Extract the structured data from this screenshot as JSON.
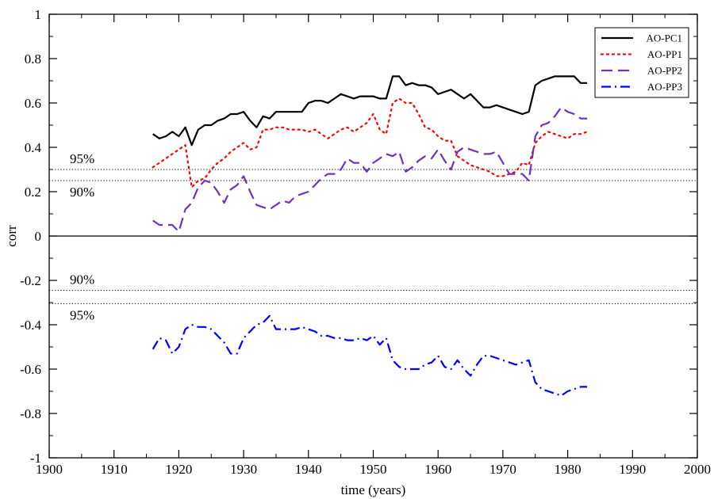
{
  "chart_data": {
    "type": "line",
    "xlabel": "time (years)",
    "ylabel": "corr",
    "xlim": [
      1900,
      2000
    ],
    "ylim": [
      -1,
      1
    ],
    "xticks": [
      1900,
      1910,
      1920,
      1930,
      1940,
      1950,
      1960,
      1970,
      1980,
      1990,
      2000
    ],
    "yticks": [
      -1,
      -0.8,
      -0.6,
      -0.4,
      -0.2,
      0,
      0.2,
      0.4,
      0.6,
      0.8,
      1
    ],
    "ytick_labels": [
      "-1",
      "-0.8",
      "-0.6",
      "-0.4",
      "-0.2",
      "0",
      "0.2",
      "0.4",
      "0.6",
      "0.8",
      "1"
    ],
    "xtick_labels": [
      "1900",
      "1910",
      "1920",
      "1930",
      "1940",
      "1950",
      "1960",
      "1970",
      "1980",
      "1990",
      "2000"
    ],
    "grid": false,
    "legend_position": "top-right",
    "reference_lines": [
      {
        "y": 0.3,
        "label": "95%",
        "style": "dotted"
      },
      {
        "y": 0.25,
        "label": "90%",
        "style": "dotted"
      },
      {
        "y": 0,
        "label": "",
        "style": "solid"
      },
      {
        "y": -0.245,
        "label": "90%",
        "style": "dotted"
      },
      {
        "y": -0.305,
        "label": "95%",
        "style": "dotted"
      }
    ],
    "series": [
      {
        "name": "AO-PC1",
        "color": "#000000",
        "dash": "solid",
        "x": [
          1916,
          1917,
          1918,
          1919,
          1920,
          1921,
          1922,
          1923,
          1924,
          1925,
          1926,
          1927,
          1928,
          1929,
          1930,
          1931,
          1932,
          1933,
          1934,
          1935,
          1936,
          1937,
          1938,
          1939,
          1940,
          1941,
          1942,
          1943,
          1944,
          1945,
          1946,
          1947,
          1948,
          1949,
          1950,
          1951,
          1952,
          1953,
          1954,
          1955,
          1956,
          1957,
          1958,
          1959,
          1960,
          1961,
          1962,
          1963,
          1964,
          1965,
          1966,
          1967,
          1968,
          1969,
          1970,
          1971,
          1972,
          1973,
          1974,
          1975,
          1976,
          1977,
          1978,
          1979,
          1980,
          1981,
          1982,
          1983
        ],
        "y": [
          0.46,
          0.44,
          0.45,
          0.47,
          0.45,
          0.49,
          0.41,
          0.48,
          0.5,
          0.5,
          0.52,
          0.53,
          0.55,
          0.55,
          0.56,
          0.52,
          0.49,
          0.54,
          0.53,
          0.56,
          0.56,
          0.56,
          0.56,
          0.56,
          0.6,
          0.61,
          0.61,
          0.6,
          0.62,
          0.64,
          0.63,
          0.62,
          0.63,
          0.63,
          0.63,
          0.62,
          0.62,
          0.72,
          0.72,
          0.68,
          0.69,
          0.68,
          0.68,
          0.67,
          0.64,
          0.65,
          0.66,
          0.64,
          0.62,
          0.64,
          0.61,
          0.58,
          0.58,
          0.59,
          0.58,
          0.57,
          0.56,
          0.55,
          0.56,
          0.68,
          0.7,
          0.71,
          0.72,
          0.72,
          0.72,
          0.72,
          0.69,
          0.69
        ]
      },
      {
        "name": "AO-PP1",
        "color": "#ff0000",
        "dash": "dotted",
        "x": [
          1916,
          1917,
          1918,
          1919,
          1920,
          1921,
          1922,
          1923,
          1924,
          1925,
          1926,
          1927,
          1928,
          1929,
          1930,
          1931,
          1932,
          1933,
          1934,
          1935,
          1936,
          1937,
          1938,
          1939,
          1940,
          1941,
          1942,
          1943,
          1944,
          1945,
          1946,
          1947,
          1948,
          1949,
          1950,
          1951,
          1952,
          1953,
          1954,
          1955,
          1956,
          1957,
          1958,
          1959,
          1960,
          1961,
          1962,
          1963,
          1964,
          1965,
          1966,
          1967,
          1968,
          1969,
          1970,
          1971,
          1972,
          1973,
          1974,
          1975,
          1976,
          1977,
          1978,
          1979,
          1980,
          1981,
          1982,
          1983
        ],
        "y": [
          0.31,
          0.33,
          0.35,
          0.37,
          0.39,
          0.41,
          0.22,
          0.25,
          0.26,
          0.3,
          0.33,
          0.35,
          0.38,
          0.4,
          0.42,
          0.39,
          0.4,
          0.48,
          0.48,
          0.49,
          0.49,
          0.48,
          0.48,
          0.48,
          0.47,
          0.48,
          0.46,
          0.44,
          0.46,
          0.48,
          0.49,
          0.47,
          0.49,
          0.51,
          0.55,
          0.48,
          0.46,
          0.6,
          0.62,
          0.6,
          0.6,
          0.55,
          0.49,
          0.48,
          0.45,
          0.43,
          0.43,
          0.36,
          0.34,
          0.32,
          0.31,
          0.3,
          0.29,
          0.27,
          0.27,
          0.28,
          0.29,
          0.33,
          0.32,
          0.42,
          0.45,
          0.47,
          0.46,
          0.45,
          0.44,
          0.46,
          0.46,
          0.47
        ]
      },
      {
        "name": "AO-PP2",
        "color": "#7030c0",
        "dash": "dashed",
        "x": [
          1916,
          1917,
          1918,
          1919,
          1920,
          1921,
          1922,
          1923,
          1924,
          1925,
          1926,
          1927,
          1928,
          1929,
          1930,
          1931,
          1932,
          1933,
          1934,
          1935,
          1936,
          1937,
          1938,
          1939,
          1940,
          1941,
          1942,
          1943,
          1944,
          1945,
          1946,
          1947,
          1948,
          1949,
          1950,
          1951,
          1952,
          1953,
          1954,
          1955,
          1956,
          1957,
          1958,
          1959,
          1960,
          1961,
          1962,
          1963,
          1964,
          1965,
          1966,
          1967,
          1968,
          1969,
          1970,
          1971,
          1972,
          1973,
          1974,
          1975,
          1976,
          1977,
          1978,
          1979,
          1980,
          1981,
          1982,
          1983
        ],
        "y": [
          0.07,
          0.05,
          0.05,
          0.05,
          0.02,
          0.12,
          0.15,
          0.22,
          0.25,
          0.24,
          0.2,
          0.15,
          0.21,
          0.23,
          0.27,
          0.2,
          0.14,
          0.13,
          0.12,
          0.14,
          0.16,
          0.15,
          0.18,
          0.19,
          0.2,
          0.23,
          0.26,
          0.28,
          0.28,
          0.3,
          0.35,
          0.33,
          0.33,
          0.29,
          0.33,
          0.35,
          0.37,
          0.36,
          0.38,
          0.29,
          0.31,
          0.34,
          0.36,
          0.35,
          0.39,
          0.34,
          0.3,
          0.38,
          0.4,
          0.39,
          0.38,
          0.37,
          0.37,
          0.38,
          0.33,
          0.28,
          0.28,
          0.28,
          0.25,
          0.45,
          0.5,
          0.51,
          0.54,
          0.58,
          0.56,
          0.55,
          0.53,
          0.53
        ]
      },
      {
        "name": "AO-PP3",
        "color": "#0000ff",
        "dash": "dashdot",
        "x": [
          1916,
          1917,
          1918,
          1919,
          1920,
          1921,
          1922,
          1923,
          1924,
          1925,
          1926,
          1927,
          1928,
          1929,
          1930,
          1931,
          1932,
          1933,
          1934,
          1935,
          1936,
          1937,
          1938,
          1939,
          1940,
          1941,
          1942,
          1943,
          1944,
          1945,
          1946,
          1947,
          1948,
          1949,
          1950,
          1951,
          1952,
          1953,
          1954,
          1955,
          1956,
          1957,
          1958,
          1959,
          1960,
          1961,
          1962,
          1963,
          1964,
          1965,
          1966,
          1967,
          1968,
          1969,
          1970,
          1971,
          1972,
          1973,
          1974,
          1975,
          1976,
          1977,
          1978,
          1979,
          1980,
          1981,
          1982,
          1983
        ],
        "y": [
          -0.51,
          -0.46,
          -0.47,
          -0.53,
          -0.5,
          -0.42,
          -0.4,
          -0.41,
          -0.41,
          -0.42,
          -0.45,
          -0.48,
          -0.53,
          -0.53,
          -0.46,
          -0.43,
          -0.4,
          -0.39,
          -0.36,
          -0.42,
          -0.42,
          -0.42,
          -0.42,
          -0.41,
          -0.42,
          -0.43,
          -0.45,
          -0.45,
          -0.46,
          -0.46,
          -0.47,
          -0.47,
          -0.46,
          -0.47,
          -0.45,
          -0.49,
          -0.46,
          -0.56,
          -0.59,
          -0.6,
          -0.6,
          -0.6,
          -0.58,
          -0.57,
          -0.54,
          -0.59,
          -0.6,
          -0.56,
          -0.6,
          -0.63,
          -0.58,
          -0.54,
          -0.54,
          -0.55,
          -0.56,
          -0.57,
          -0.58,
          -0.57,
          -0.56,
          -0.66,
          -0.69,
          -0.7,
          -0.71,
          -0.72,
          -0.7,
          -0.69,
          -0.68,
          -0.68
        ]
      }
    ]
  }
}
